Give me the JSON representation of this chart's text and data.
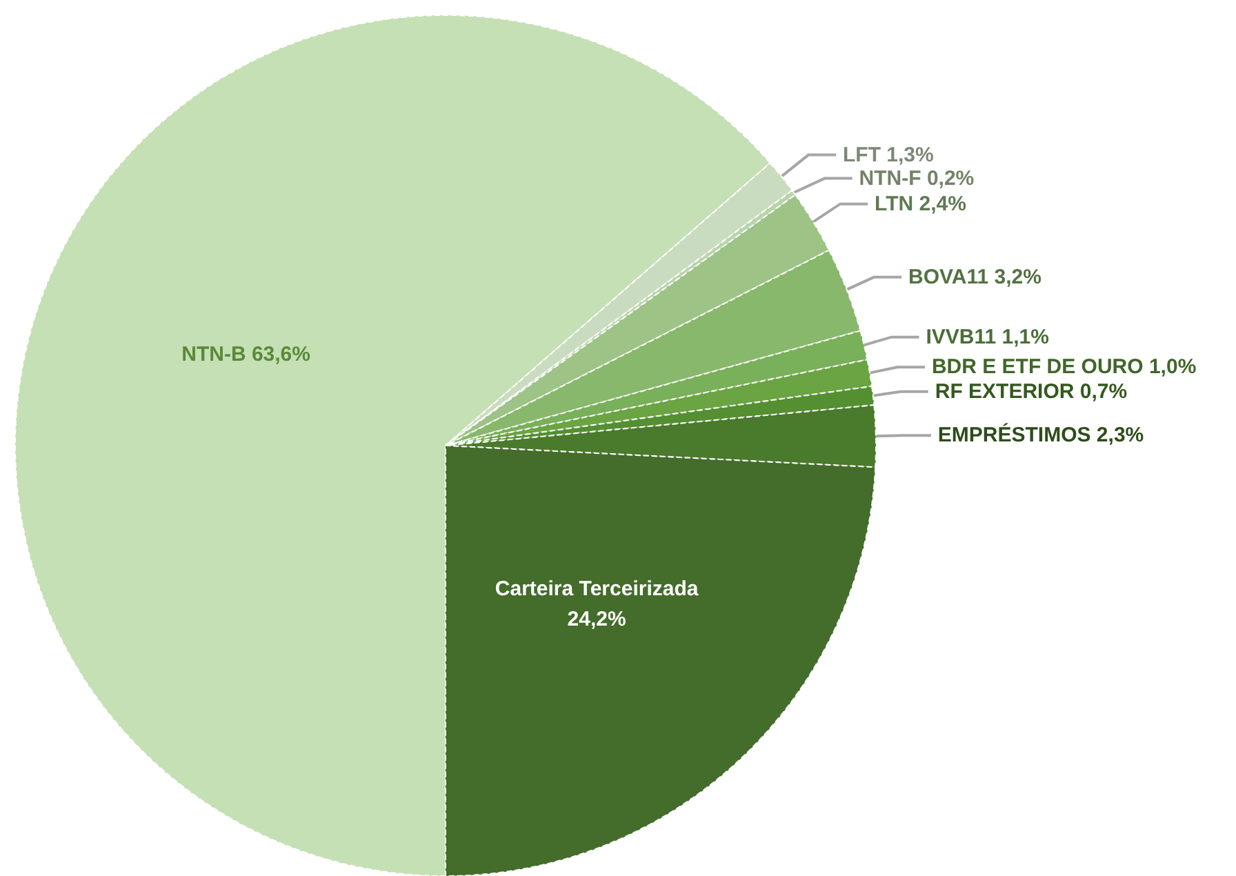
{
  "chart_data": {
    "type": "pie",
    "categories": [
      "NTN-B",
      "LFT",
      "NTN-F",
      "LTN",
      "BOVA11",
      "IVVB11",
      "BDR E ETF DE OURO",
      "RF EXTERIOR",
      "EMPRÉSTIMOS",
      "Carteira Terceirizada"
    ],
    "values": [
      63.6,
      1.3,
      0.2,
      2.4,
      3.2,
      1.1,
      1.0,
      0.7,
      2.3,
      24.2
    ],
    "colors": [
      "#c5e0b4",
      "#cadcc0",
      "#b9d4a8",
      "#9dc387",
      "#88b86c",
      "#79b05a",
      "#6aa443",
      "#548f32",
      "#4a7a2c",
      "#446c2b"
    ],
    "value_labels": [
      "63,6%",
      "1,3%",
      "0,2%",
      "2,4%",
      "3,2%",
      "1,1%",
      "1,0%",
      "0,7%",
      "2,3%",
      "24,2%"
    ]
  }
}
